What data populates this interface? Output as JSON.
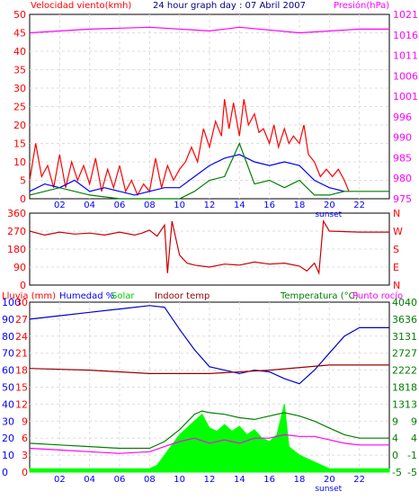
{
  "header": {
    "wind_label": "Velocidad viento(kmh)",
    "title": "24 hour graph day : 07 Abril 2007",
    "pressure_label": "Presión(hPa)"
  },
  "bottom_header": {
    "rain_label": "Lluvia (mm)",
    "humidity_label": "Humedad %",
    "solar_label": "Solar",
    "indoor_label": "Indoor temp",
    "temp_label": "Temperatura (°C)",
    "dew_label": "Punto rocío"
  },
  "colors": {
    "wind": "#ff0000",
    "wind_avg": "#0000ff",
    "wind_green": "#008000",
    "pressure": "#ff00ff",
    "direction": "#cc0000",
    "humidity": "#0000cc",
    "solar": "#00ff00",
    "indoor": "#990000",
    "temperature": "#008000",
    "dewpoint": "#ff00ff",
    "axis_left": "#ff0000",
    "axis_right_pressure": "#ff00ff",
    "axis_blue": "#0000ff"
  },
  "chart_data": [
    {
      "id": "wind_pressure",
      "type": "line",
      "x": {
        "min": 0,
        "max": 24,
        "ticks": [
          "02",
          "04",
          "06",
          "08",
          "10",
          "12",
          "14",
          "16",
          "18",
          "20",
          "22"
        ],
        "tick_hours": [
          2,
          4,
          6,
          8,
          10,
          12,
          14,
          16,
          18,
          20,
          22
        ]
      },
      "annotation": "sunset",
      "annotation_hour": 20,
      "left_axis": {
        "label": "Velocidad viento(kmh)",
        "min": 0,
        "max": 50,
        "ticks": [
          0,
          5,
          10,
          15,
          20,
          25,
          30,
          35,
          40,
          45,
          50
        ]
      },
      "right_axis": {
        "label": "Presión(hPa)",
        "ticks": [
          975,
          980,
          985,
          990,
          996,
          1001,
          1006,
          1011,
          1016,
          1021
        ],
        "min_label": 975,
        "max_label": 1021
      },
      "series": [
        {
          "name": "Racha",
          "axis": "left",
          "points": [
            [
              0,
              5
            ],
            [
              0.4,
              15
            ],
            [
              0.8,
              6
            ],
            [
              1.2,
              9
            ],
            [
              1.6,
              3
            ],
            [
              2,
              12
            ],
            [
              2.4,
              3
            ],
            [
              2.8,
              10
            ],
            [
              3.2,
              5
            ],
            [
              3.6,
              9
            ],
            [
              4,
              4
            ],
            [
              4.4,
              11
            ],
            [
              4.8,
              2
            ],
            [
              5.2,
              8
            ],
            [
              5.6,
              3
            ],
            [
              6,
              9
            ],
            [
              6.4,
              2
            ],
            [
              6.8,
              5
            ],
            [
              7.2,
              1
            ],
            [
              7.6,
              4
            ],
            [
              8,
              2
            ],
            [
              8.4,
              11
            ],
            [
              8.8,
              3
            ],
            [
              9.2,
              9
            ],
            [
              9.6,
              5
            ],
            [
              10,
              8
            ],
            [
              10.4,
              10
            ],
            [
              10.8,
              14
            ],
            [
              11.2,
              10
            ],
            [
              11.6,
              19
            ],
            [
              12,
              14
            ],
            [
              12.4,
              21
            ],
            [
              12.8,
              17
            ],
            [
              13,
              27
            ],
            [
              13.3,
              19
            ],
            [
              13.6,
              26
            ],
            [
              14,
              17
            ],
            [
              14.3,
              27
            ],
            [
              14.6,
              20
            ],
            [
              15,
              23
            ],
            [
              15.3,
              18
            ],
            [
              15.6,
              19
            ],
            [
              16,
              15
            ],
            [
              16.3,
              20
            ],
            [
              16.6,
              14
            ],
            [
              17,
              19
            ],
            [
              17.3,
              15
            ],
            [
              17.6,
              17
            ],
            [
              18,
              15
            ],
            [
              18.3,
              20
            ],
            [
              18.6,
              12
            ],
            [
              19,
              10
            ],
            [
              19.4,
              6
            ],
            [
              19.8,
              8
            ],
            [
              20.2,
              6
            ],
            [
              20.6,
              8
            ],
            [
              21,
              5
            ],
            [
              21.3,
              2
            ]
          ]
        },
        {
          "name": "Media",
          "axis": "left",
          "points": [
            [
              0,
              2
            ],
            [
              1,
              4
            ],
            [
              2,
              3
            ],
            [
              3,
              5
            ],
            [
              4,
              2
            ],
            [
              5,
              3
            ],
            [
              6,
              2
            ],
            [
              7,
              1
            ],
            [
              8,
              2
            ],
            [
              9,
              3
            ],
            [
              10,
              3
            ],
            [
              11,
              6
            ],
            [
              12,
              9
            ],
            [
              13,
              11
            ],
            [
              14,
              12
            ],
            [
              15,
              10
            ],
            [
              16,
              9
            ],
            [
              17,
              10
            ],
            [
              18,
              9
            ],
            [
              19,
              5
            ],
            [
              20,
              3
            ],
            [
              21,
              2
            ]
          ]
        },
        {
          "name": "Minima",
          "axis": "left",
          "points": [
            [
              0,
              1
            ],
            [
              2,
              3
            ],
            [
              4,
              1
            ],
            [
              6,
              0
            ],
            [
              8,
              0
            ],
            [
              10,
              0
            ],
            [
              11,
              2
            ],
            [
              12,
              5
            ],
            [
              13,
              6
            ],
            [
              14,
              15
            ],
            [
              15,
              4
            ],
            [
              16,
              5
            ],
            [
              17,
              3
            ],
            [
              18,
              5
            ],
            [
              19,
              1
            ],
            [
              20,
              1
            ],
            [
              21,
              2
            ],
            [
              24,
              2
            ]
          ]
        },
        {
          "name": "Presion",
          "axis": "right",
          "normalized": true,
          "points": [
            [
              0,
              0.9
            ],
            [
              4,
              0.92
            ],
            [
              8,
              0.93
            ],
            [
              12,
              0.91
            ],
            [
              14,
              0.93
            ],
            [
              18,
              0.9
            ],
            [
              22,
              0.92
            ],
            [
              24,
              0.92
            ]
          ]
        }
      ]
    },
    {
      "id": "wind_direction",
      "type": "line",
      "x": {
        "min": 0,
        "max": 24
      },
      "left_axis": {
        "min": 0,
        "max": 360,
        "ticks": [
          0,
          90,
          180,
          270,
          360
        ]
      },
      "right_axis_labels": [
        "N",
        "W",
        "S",
        "E",
        "N"
      ],
      "series": [
        {
          "name": "Direccion",
          "points": [
            [
              0,
              270
            ],
            [
              1,
              250
            ],
            [
              2,
              265
            ],
            [
              3,
              255
            ],
            [
              4,
              260
            ],
            [
              5,
              250
            ],
            [
              6,
              265
            ],
            [
              7,
              250
            ],
            [
              7.5,
              260
            ],
            [
              8,
              275
            ],
            [
              8.5,
              245
            ],
            [
              9,
              300
            ],
            [
              9.2,
              60
            ],
            [
              9.5,
              320
            ],
            [
              10,
              150
            ],
            [
              10.5,
              110
            ],
            [
              11,
              100
            ],
            [
              12,
              90
            ],
            [
              13,
              105
            ],
            [
              14,
              100
            ],
            [
              15,
              115
            ],
            [
              16,
              105
            ],
            [
              17,
              110
            ],
            [
              18,
              95
            ],
            [
              18.5,
              70
            ],
            [
              19,
              110
            ],
            [
              19.3,
              60
            ],
            [
              19.6,
              320
            ],
            [
              20,
              270
            ],
            [
              22,
              265
            ],
            [
              24,
              265
            ]
          ]
        }
      ]
    },
    {
      "id": "rain_humidity_temp",
      "type": "line",
      "x": {
        "min": 0,
        "max": 24,
        "ticks": [
          "02",
          "04",
          "06",
          "08",
          "10",
          "12",
          "14",
          "16",
          "18",
          "20",
          "22"
        ],
        "tick_hours": [
          2,
          4,
          6,
          8,
          10,
          12,
          14,
          16,
          18,
          20,
          22
        ]
      },
      "annotation": "sunset",
      "annotation_hour": 20,
      "left_axes": [
        {
          "name": "humidity",
          "ticks": [
            0,
            10,
            20,
            30,
            40,
            50,
            60,
            70,
            80,
            90,
            100
          ]
        },
        {
          "name": "rain",
          "ticks": [
            0,
            3,
            6,
            9,
            12,
            15,
            18,
            21,
            24,
            27,
            30
          ]
        }
      ],
      "right_axes": [
        {
          "name": "temp_left",
          "ticks": [
            -5,
            0,
            4,
            9,
            13,
            18,
            22,
            27,
            31,
            36,
            40
          ]
        },
        {
          "name": "temp_right",
          "ticks": [
            -5,
            -1,
            4,
            9,
            13,
            18,
            22,
            27,
            31,
            36,
            40
          ]
        }
      ],
      "series": [
        {
          "name": "Humedad",
          "points": [
            [
              0,
              90
            ],
            [
              2,
              92
            ],
            [
              4,
              94
            ],
            [
              6,
              96
            ],
            [
              8,
              98
            ],
            [
              9,
              97
            ],
            [
              10,
              84
            ],
            [
              11,
              72
            ],
            [
              12,
              62
            ],
            [
              13,
              60
            ],
            [
              14,
              58
            ],
            [
              15,
              60
            ],
            [
              16,
              59
            ],
            [
              17,
              55
            ],
            [
              18,
              52
            ],
            [
              19,
              60
            ],
            [
              20,
              70
            ],
            [
              21,
              80
            ],
            [
              22,
              85
            ],
            [
              24,
              85
            ]
          ]
        },
        {
          "name": "Indoor temp",
          "points": [
            [
              0,
              61
            ],
            [
              4,
              60
            ],
            [
              8,
              58
            ],
            [
              12,
              58
            ],
            [
              16,
              60
            ],
            [
              20,
              63
            ],
            [
              24,
              63
            ]
          ]
        },
        {
          "name": "Temperatura",
          "points": [
            [
              0,
              17
            ],
            [
              2,
              16
            ],
            [
              4,
              15
            ],
            [
              6,
              14
            ],
            [
              8,
              14
            ],
            [
              9,
              18
            ],
            [
              10,
              25
            ],
            [
              11,
              34
            ],
            [
              11.5,
              36
            ],
            [
              12,
              35
            ],
            [
              13,
              34
            ],
            [
              14,
              32
            ],
            [
              15,
              31
            ],
            [
              16,
              33
            ],
            [
              17,
              35
            ],
            [
              18,
              33
            ],
            [
              19,
              30
            ],
            [
              20,
              26
            ],
            [
              21,
              22
            ],
            [
              22,
              20
            ],
            [
              24,
              20
            ]
          ]
        },
        {
          "name": "Punto rocío",
          "points": [
            [
              0,
              14
            ],
            [
              2,
              13
            ],
            [
              4,
              12
            ],
            [
              6,
              11
            ],
            [
              8,
              12
            ],
            [
              9,
              15
            ],
            [
              10,
              18
            ],
            [
              11,
              20
            ],
            [
              12,
              17
            ],
            [
              13,
              19
            ],
            [
              14,
              17
            ],
            [
              15,
              20
            ],
            [
              16,
              20
            ],
            [
              17,
              22
            ],
            [
              18,
              21
            ],
            [
              19,
              21
            ],
            [
              20,
              19
            ],
            [
              21,
              17
            ],
            [
              22,
              16
            ],
            [
              24,
              16
            ]
          ]
        },
        {
          "name": "Solar",
          "area": true,
          "points": [
            [
              0,
              2
            ],
            [
              8,
              2
            ],
            [
              8.5,
              4
            ],
            [
              9,
              10
            ],
            [
              10,
              22
            ],
            [
              11,
              30
            ],
            [
              11.5,
              34
            ],
            [
              12,
              26
            ],
            [
              12.5,
              24
            ],
            [
              13,
              28
            ],
            [
              13.5,
              24
            ],
            [
              14,
              27
            ],
            [
              14.5,
              22
            ],
            [
              15,
              25
            ],
            [
              15.5,
              20
            ],
            [
              16,
              18
            ],
            [
              16.5,
              22
            ],
            [
              17,
              40
            ],
            [
              17.3,
              15
            ],
            [
              18,
              10
            ],
            [
              19,
              6
            ],
            [
              20,
              2
            ],
            [
              24,
              2
            ]
          ]
        }
      ]
    }
  ]
}
